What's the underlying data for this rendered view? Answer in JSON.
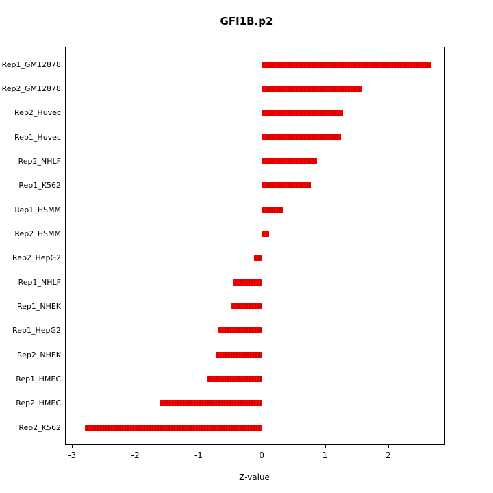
{
  "chart_data": {
    "type": "bar",
    "orientation": "horizontal",
    "title": "GFI1B.p2",
    "xlabel": "Z-value",
    "ylabel": "",
    "categories": [
      "Rep1_GM12878",
      "Rep2_GM12878",
      "Rep2_Huvec",
      "Rep1_Huvec",
      "Rep2_NHLF",
      "Rep1_K562",
      "Rep1_HSMM",
      "Rep2_HSMM",
      "Rep2_HepG2",
      "Rep1_NHLF",
      "Rep1_NHEK",
      "Rep1_HepG2",
      "Rep2_NHEK",
      "Rep1_HMEC",
      "Rep2_HMEC",
      "Rep2_K562"
    ],
    "values": [
      2.67,
      1.59,
      1.29,
      1.26,
      0.88,
      0.78,
      0.33,
      0.12,
      -0.12,
      -0.45,
      -0.48,
      -0.7,
      -0.73,
      -0.87,
      -1.62,
      -2.8
    ],
    "xlim": [
      -3.1,
      2.89
    ],
    "x_ticks": [
      -3,
      -2,
      -1,
      0,
      1,
      2
    ],
    "bar_color": "#ff0000",
    "bar_stripe_color": "#d40000",
    "zero_line_color": "#00cc00",
    "grid": false,
    "legend": null
  }
}
